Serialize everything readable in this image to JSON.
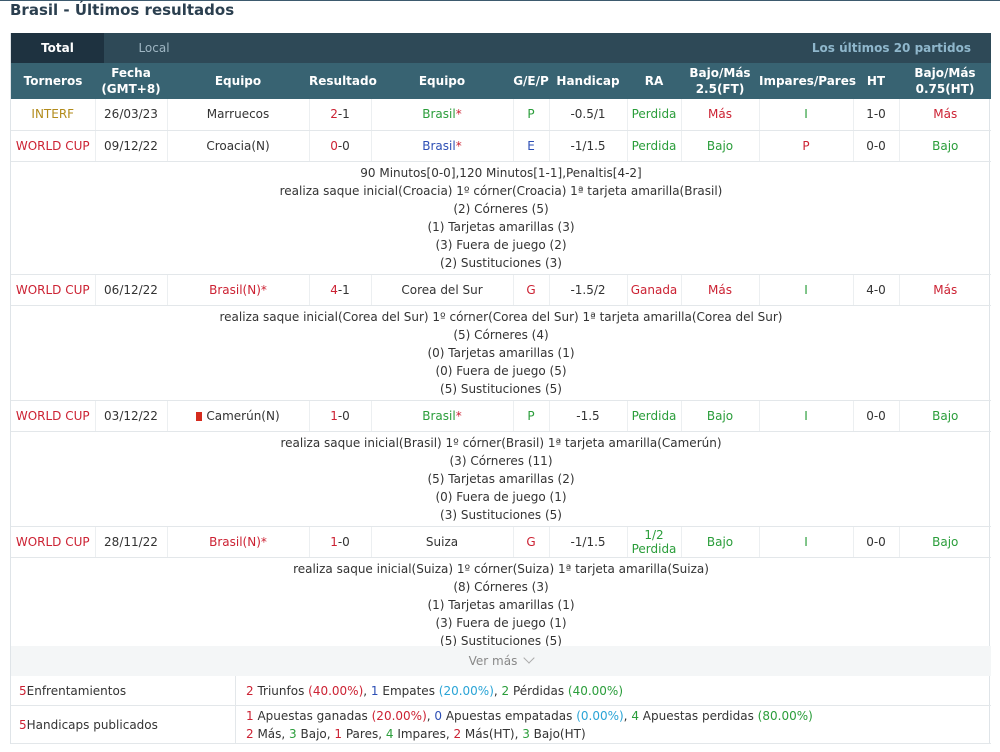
{
  "page": {
    "title": "Brasil - Últimos resultados"
  },
  "tabs": {
    "total": "Total",
    "local": "Local",
    "last_n": "Los últimos 20 partidos"
  },
  "columns": [
    "Torneros",
    "Fecha\n(GMT+8)",
    "Equipo",
    "Resultado",
    "Equipo",
    "G/E/P",
    "Handicap",
    "RA",
    "Bajo/Más\n2.5(FT)",
    "Impares/Pares",
    "HT",
    "Bajo/Más\n0.75(HT)"
  ],
  "matches": [
    {
      "tournament": "INTERF",
      "date": "26/03/23",
      "home": "Marruecos",
      "home_star": "",
      "score_h": "2",
      "score_a": "1",
      "away": "Brasil",
      "away_star": "*",
      "gep": "P",
      "handicap": "-0.5/1",
      "ra": "Perdida",
      "ou25": "Más",
      "oe": "I",
      "ht": "1-0",
      "ou075": "Más",
      "details": []
    },
    {
      "tournament": "WORLD CUP",
      "date": "09/12/22",
      "home": "Croacia(N)",
      "home_star": "",
      "score_h": "0",
      "score_a": "0",
      "away": "Brasil",
      "away_star": "*",
      "gep": "E",
      "handicap": "-1/1.5",
      "ra": "Perdida",
      "ou25": "Bajo",
      "oe": "P",
      "ht": "0-0",
      "ou075": "Bajo",
      "details": [
        "90 Minutos[0-0],120 Minutos[1-1],Penaltis[4-2]",
        "realiza saque inicial(Croacia)  1º córner(Croacia)  1ª tarjeta amarilla(Brasil)",
        "(2) Córneres (5)",
        "(1) Tarjetas amarillas (3)",
        "(3) Fuera de juego (2)",
        "(2) Sustituciones (3)"
      ]
    },
    {
      "tournament": "WORLD CUP",
      "date": "06/12/22",
      "home": "Brasil(N)",
      "home_star": "*",
      "score_h": "4",
      "score_a": "1",
      "away": "Corea del Sur",
      "away_star": "",
      "gep": "G",
      "handicap": "-1.5/2",
      "ra": "Ganada",
      "ou25": "Más",
      "oe": "I",
      "ht": "4-0",
      "ou075": "Más",
      "details": [
        "realiza saque inicial(Corea del Sur)  1º córner(Corea del Sur)  1ª tarjeta amarilla(Corea del Sur)",
        "(5) Córneres (4)",
        "(0) Tarjetas amarillas (1)",
        "(0) Fuera de juego (5)",
        "(5) Sustituciones (5)"
      ]
    },
    {
      "tournament": "WORLD CUP",
      "date": "03/12/22",
      "home": "Camerún(N)",
      "home_star": "",
      "score_h": "1",
      "score_a": "0",
      "away": "Brasil",
      "away_star": "*",
      "gep": "P",
      "handicap": "-1.5",
      "ra": "Perdida",
      "ou25": "Bajo",
      "oe": "I",
      "ht": "0-0",
      "ou075": "Bajo",
      "details": [
        "realiza saque inicial(Brasil)  1º córner(Brasil)  1ª tarjeta amarilla(Camerún)",
        "(3) Córneres (11)",
        "(5) Tarjetas amarillas (2)",
        "(0) Fuera de juego (1)",
        "(3) Sustituciones (5)"
      ]
    },
    {
      "tournament": "WORLD CUP",
      "date": "28/11/22",
      "home": "Brasil(N)",
      "home_star": "*",
      "score_h": "1",
      "score_a": "0",
      "away": "Suiza",
      "away_star": "",
      "gep": "G",
      "handicap": "-1/1.5",
      "ra": "1/2\nPerdida",
      "ou25": "Bajo",
      "oe": "I",
      "ht": "0-0",
      "ou075": "Bajo",
      "details": [
        "realiza saque inicial(Suiza)  1º córner(Suiza)  1ª tarjeta amarilla(Suiza)",
        "(8) Córneres (3)",
        "(1) Tarjetas amarillas (1)",
        "(3) Fuera de juego (1)",
        "(5) Sustituciones (5)"
      ]
    }
  ],
  "ver_mas": "Ver más",
  "summary": {
    "enfrentamientos": {
      "count": "5",
      "label": " Enfrentamientos"
    },
    "results": {
      "wins": "2",
      "wins_label": " Triunfos ",
      "wins_pct": "(40.00%)",
      "draws": "1",
      "draws_label": " Empates ",
      "draws_pct": "(20.00%)",
      "losses": "2",
      "losses_label": " Pérdidas ",
      "losses_pct": "(40.00%)"
    },
    "handicaps": {
      "count": "5",
      "label": " Handicaps publicados"
    },
    "bets": {
      "won": "1",
      "won_label": " Apuestas ganadas ",
      "won_pct": "(20.00%)",
      "draw": "0",
      "draw_label": " Apuestas empatadas ",
      "draw_pct": "(0.00%)",
      "lost": "4",
      "lost_label": " Apuestas perdidas ",
      "lost_pct": "(80.00%)"
    },
    "ou": {
      "mas": "2",
      "mas_label": " Más, ",
      "bajo": "3",
      "bajo_label": " Bajo, ",
      "pares": "1",
      "pares_label": " Pares, ",
      "impares": "4",
      "impares_label": " Impares, ",
      "mas_ht": "2",
      "mas_ht_label": " Más(HT), ",
      "bajo_ht": "3",
      "bajo_ht_label": " Bajo(HT)"
    }
  },
  "colors": {
    "header": "#386372",
    "tabbar": "#2e4957",
    "win": "#2a9d3a",
    "loss": "#cc2233",
    "draw": "#2d4fb5"
  }
}
